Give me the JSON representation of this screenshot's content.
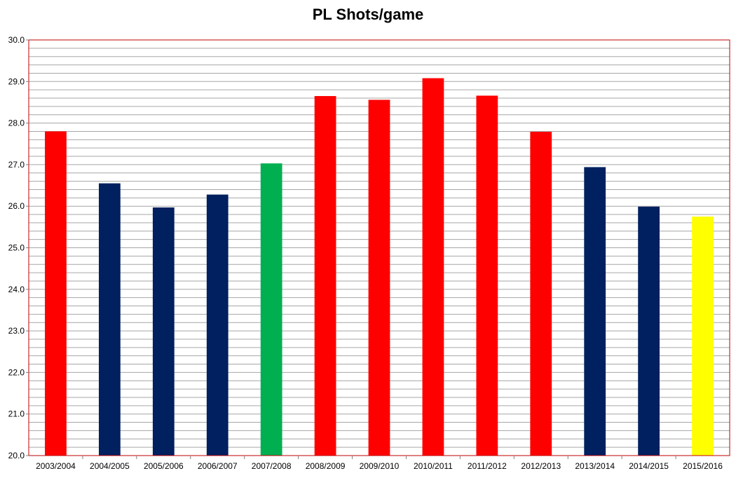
{
  "chart_data": {
    "type": "bar",
    "title": "PL Shots/game",
    "xlabel": "",
    "ylabel": "",
    "ylim": [
      20.0,
      30.0
    ],
    "yticks": [
      "20.0",
      "21.0",
      "22.0",
      "23.0",
      "24.0",
      "25.0",
      "26.0",
      "27.0",
      "28.0",
      "29.0",
      "30.0"
    ],
    "minor_grid_step": 0.2,
    "legend": "none",
    "categories": [
      "2003/2004",
      "2004/2005",
      "2005/2006",
      "2006/2007",
      "2007/2008",
      "2008/2009",
      "2009/2010",
      "2010/2011",
      "2011/2012",
      "2012/2013",
      "2013/2014",
      "2014/2015",
      "2015/2016"
    ],
    "values": [
      27.8,
      26.55,
      25.97,
      26.28,
      27.03,
      28.65,
      28.56,
      29.08,
      28.66,
      27.79,
      26.94,
      25.99,
      25.75
    ],
    "bar_colors": [
      "#ff0000",
      "#002060",
      "#002060",
      "#002060",
      "#00b050",
      "#ff0000",
      "#ff0000",
      "#ff0000",
      "#ff0000",
      "#ff0000",
      "#002060",
      "#002060",
      "#ffff00"
    ],
    "plot_border_color": "#c00000",
    "grid_color": "#a6a6a6"
  }
}
